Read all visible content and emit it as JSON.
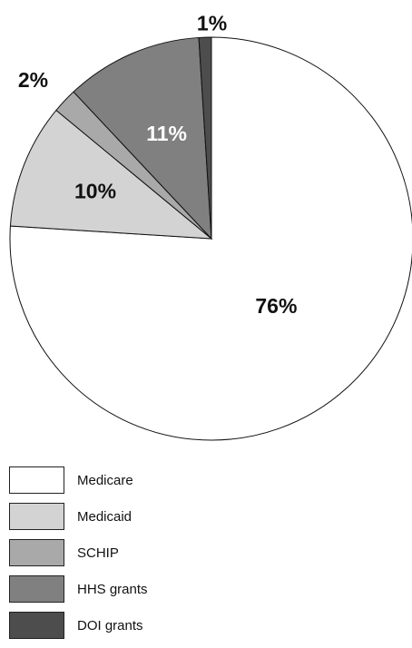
{
  "chart_data": {
    "type": "pie",
    "slices": [
      {
        "name": "Medicare",
        "value": 76,
        "label": "76%",
        "color": "#ffffff",
        "label_color": "#111111"
      },
      {
        "name": "Medicaid",
        "value": 10,
        "label": "10%",
        "color": "#d3d3d3",
        "label_color": "#111111"
      },
      {
        "name": "SCHIP",
        "value": 2,
        "label": "2%",
        "color": "#a9a9a9",
        "label_color": "#111111"
      },
      {
        "name": "HHS grants",
        "value": 11,
        "label": "11%",
        "color": "#808080",
        "label_color": "#ffffff"
      },
      {
        "name": "DOI grants",
        "value": 1,
        "label": "1%",
        "color": "#4d4d4d",
        "label_color": "#111111"
      }
    ],
    "start": "12 o'clock",
    "direction": "clockwise",
    "legend_position": "bottom-left"
  },
  "legend": {
    "items": [
      {
        "label": "Medicare",
        "color": "#ffffff"
      },
      {
        "label": "Medicaid",
        "color": "#d3d3d3"
      },
      {
        "label": "SCHIP",
        "color": "#a9a9a9"
      },
      {
        "label": "HHS grants",
        "color": "#808080"
      },
      {
        "label": "DOI grants",
        "color": "#4d4d4d"
      }
    ]
  }
}
